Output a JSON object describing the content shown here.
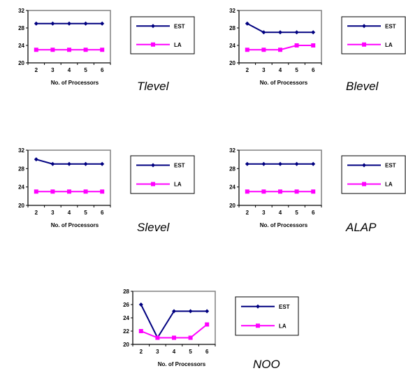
{
  "chart_data": [
    {
      "type": "line",
      "title": "Tlevel",
      "xlabel": "No. of Processors",
      "ylabel": "",
      "x": [
        2,
        3,
        4,
        5,
        6
      ],
      "ylim": [
        20,
        32
      ],
      "yticks": [
        20,
        24,
        28,
        32
      ],
      "series": [
        {
          "name": "EST",
          "values": [
            29,
            29,
            29,
            29,
            29
          ],
          "color": "#000080",
          "marker": "diamond"
        },
        {
          "name": "LA",
          "values": [
            23,
            23,
            23,
            23,
            23
          ],
          "color": "#ff00ff",
          "marker": "square"
        }
      ],
      "legend": "right",
      "grid": false
    },
    {
      "type": "line",
      "title": "Blevel",
      "xlabel": "No. of Processors",
      "ylabel": "",
      "x": [
        2,
        3,
        4,
        5,
        6
      ],
      "ylim": [
        20,
        32
      ],
      "yticks": [
        20,
        24,
        28,
        32
      ],
      "series": [
        {
          "name": "EST",
          "values": [
            29,
            27,
            27,
            27,
            27
          ],
          "color": "#000080",
          "marker": "diamond"
        },
        {
          "name": "LA",
          "values": [
            23,
            23,
            23,
            24,
            24
          ],
          "color": "#ff00ff",
          "marker": "square"
        }
      ],
      "legend": "right",
      "grid": false
    },
    {
      "type": "line",
      "title": "Slevel",
      "xlabel": "No. of Processors",
      "ylabel": "",
      "x": [
        2,
        3,
        4,
        5,
        6
      ],
      "ylim": [
        20,
        32
      ],
      "yticks": [
        20,
        24,
        28,
        32
      ],
      "series": [
        {
          "name": "EST",
          "values": [
            30,
            29,
            29,
            29,
            29
          ],
          "color": "#000080",
          "marker": "diamond"
        },
        {
          "name": "LA",
          "values": [
            23,
            23,
            23,
            23,
            23
          ],
          "color": "#ff00ff",
          "marker": "square"
        }
      ],
      "legend": "right",
      "grid": false
    },
    {
      "type": "line",
      "title": "ALAP",
      "xlabel": "No. of Processors",
      "ylabel": "",
      "x": [
        2,
        3,
        4,
        5,
        6
      ],
      "ylim": [
        20,
        32
      ],
      "yticks": [
        20,
        24,
        28,
        32
      ],
      "series": [
        {
          "name": "EST",
          "values": [
            29,
            29,
            29,
            29,
            29
          ],
          "color": "#000080",
          "marker": "diamond"
        },
        {
          "name": "LA",
          "values": [
            23,
            23,
            23,
            23,
            23
          ],
          "color": "#ff00ff",
          "marker": "square"
        }
      ],
      "legend": "right",
      "grid": false
    },
    {
      "type": "line",
      "title": "NOO",
      "xlabel": "No. of Processors",
      "ylabel": "",
      "x": [
        2,
        3,
        4,
        5,
        6
      ],
      "ylim": [
        20,
        28
      ],
      "yticks": [
        20,
        22,
        24,
        26,
        28
      ],
      "series": [
        {
          "name": "EST",
          "values": [
            26,
            21,
            25,
            25,
            25
          ],
          "color": "#000080",
          "marker": "diamond"
        },
        {
          "name": "LA",
          "values": [
            22,
            21,
            21,
            21,
            23
          ],
          "color": "#ff00ff",
          "marker": "square"
        }
      ],
      "legend": "right",
      "grid": false
    }
  ]
}
